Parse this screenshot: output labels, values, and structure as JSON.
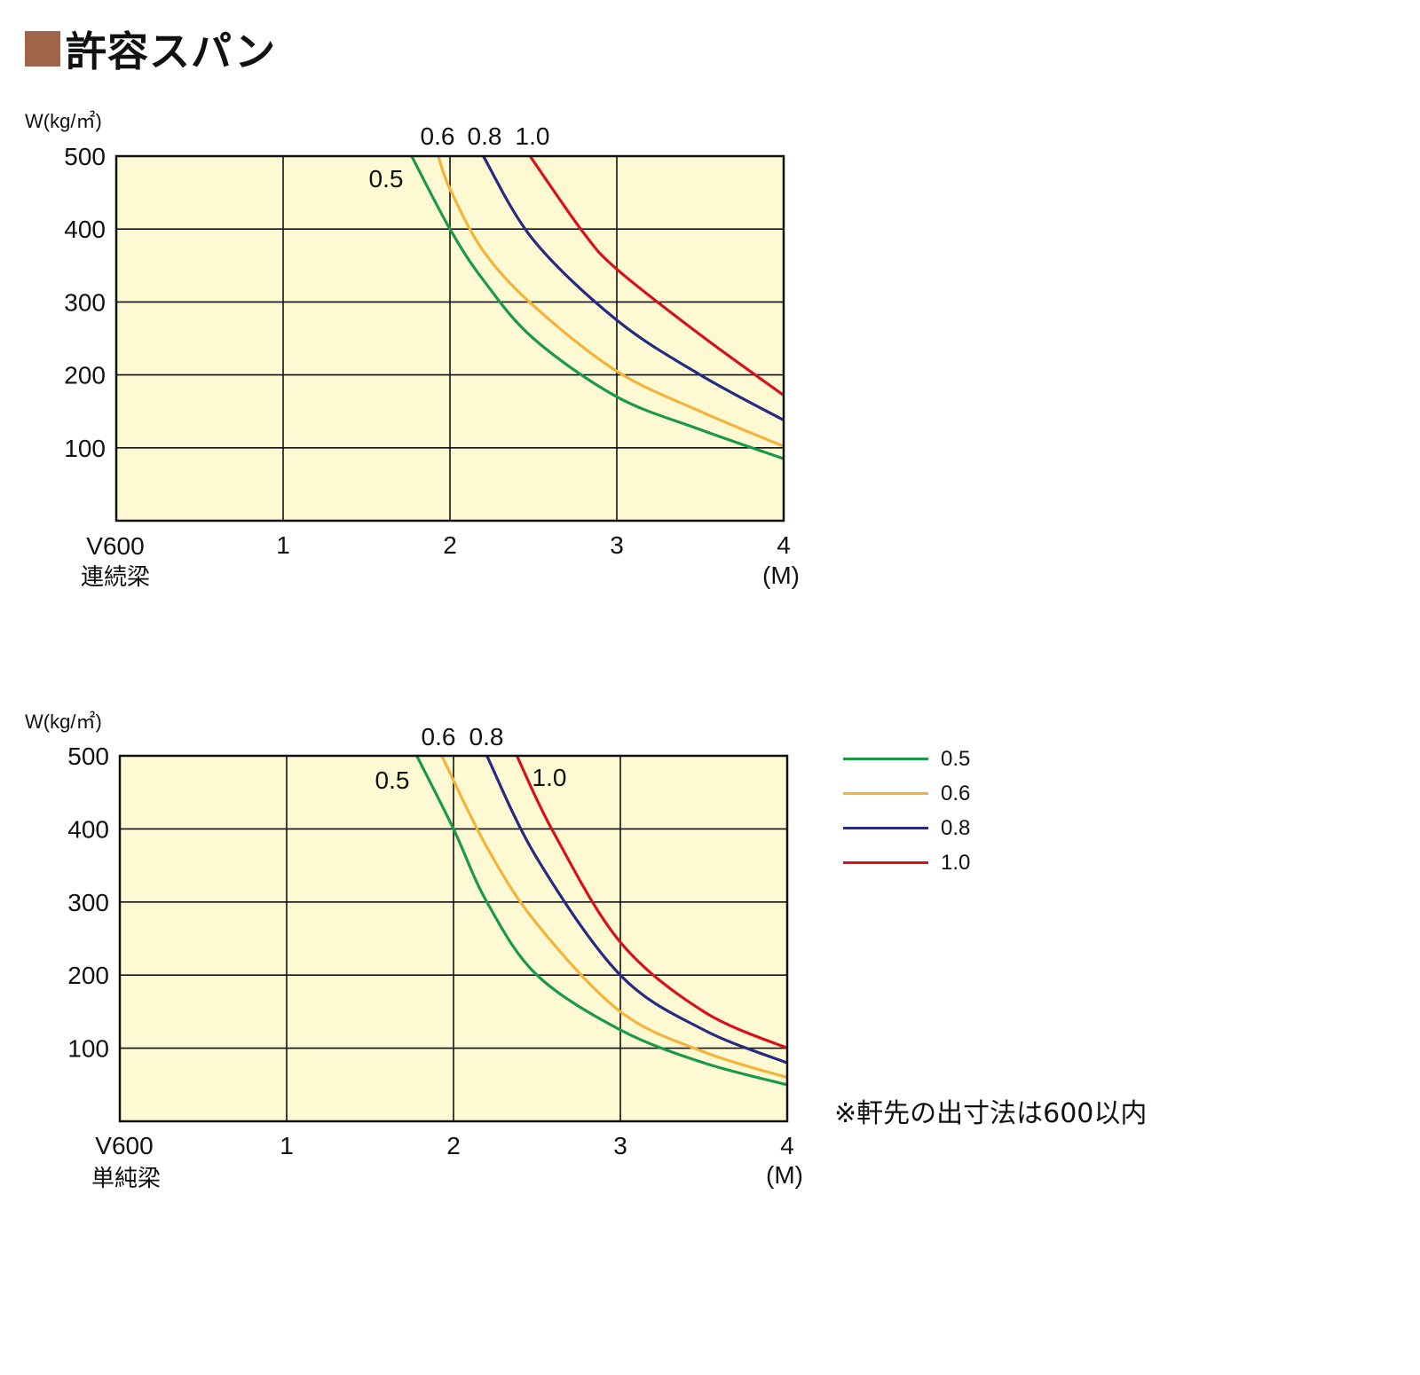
{
  "header": {
    "title": "許容スパン",
    "marker_color": "#a0644a"
  },
  "colors": {
    "plot_bg": "#fdf9d2",
    "grid": "#111111",
    "0.5": "#1a9a48",
    "0.6": "#f4b43a",
    "0.8": "#262a82",
    "1.0": "#d8101c"
  },
  "chart_data": [
    {
      "type": "line",
      "ylabel": "W(kg/㎡)",
      "xlabel": "(M)",
      "type_label": "V600",
      "beam_label": "連続梁",
      "xlim": [
        0,
        4
      ],
      "ylim": [
        0,
        500
      ],
      "x_ticks": [
        "1",
        "2",
        "3",
        "4"
      ],
      "y_ticks": [
        "100",
        "200",
        "300",
        "400",
        "500"
      ],
      "grid": true,
      "series": [
        {
          "name": "0.5",
          "x": [
            1.77,
            2.0,
            2.2,
            2.5,
            3.0,
            3.5,
            4.0
          ],
          "y": [
            500,
            400,
            330,
            250,
            170,
            125,
            85
          ]
        },
        {
          "name": "0.6",
          "x": [
            1.93,
            2.0,
            2.2,
            2.5,
            3.0,
            3.5,
            4.0
          ],
          "y": [
            500,
            455,
            370,
            295,
            205,
            150,
            102
          ]
        },
        {
          "name": "0.8",
          "x": [
            2.2,
            2.5,
            3.0,
            3.5,
            4.0
          ],
          "y": [
            500,
            385,
            275,
            200,
            138
          ]
        },
        {
          "name": "1.0",
          "x": [
            2.48,
            2.8,
            3.0,
            3.5,
            4.0
          ],
          "y": [
            500,
            395,
            345,
            255,
            172
          ]
        }
      ],
      "curve_labels": [
        "0.5",
        "0.6",
        "0.8",
        "1.0"
      ]
    },
    {
      "type": "line",
      "ylabel": "W(kg/㎡)",
      "xlabel": "(M)",
      "type_label": "V600",
      "beam_label": "単純梁",
      "xlim": [
        0,
        4
      ],
      "ylim": [
        0,
        500
      ],
      "x_ticks": [
        "1",
        "2",
        "3",
        "4"
      ],
      "y_ticks": [
        "100",
        "200",
        "300",
        "400",
        "500"
      ],
      "grid": true,
      "series": [
        {
          "name": "0.5",
          "x": [
            1.78,
            2.0,
            2.2,
            2.5,
            3.0,
            3.5,
            4.0
          ],
          "y": [
            500,
            400,
            300,
            200,
            125,
            80,
            50
          ]
        },
        {
          "name": "0.6",
          "x": [
            1.93,
            2.2,
            2.5,
            3.0,
            3.5,
            4.0
          ],
          "y": [
            500,
            375,
            270,
            150,
            95,
            60
          ]
        },
        {
          "name": "0.8",
          "x": [
            2.2,
            2.5,
            3.0,
            3.5,
            4.0
          ],
          "y": [
            500,
            360,
            200,
            125,
            80
          ]
        },
        {
          "name": "1.0",
          "x": [
            2.38,
            2.6,
            3.0,
            3.5,
            4.0
          ],
          "y": [
            500,
            395,
            245,
            150,
            100
          ]
        }
      ],
      "curve_labels": [
        "0.5",
        "0.6",
        "0.8",
        "1.0"
      ]
    }
  ],
  "legend": {
    "items": [
      "0.5",
      "0.6",
      "0.8",
      "1.0"
    ]
  },
  "note": "※軒先の出寸法は600以内"
}
